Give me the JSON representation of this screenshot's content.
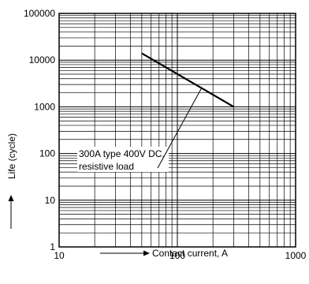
{
  "chart_data": {
    "type": "line",
    "xscale": "log",
    "yscale": "log",
    "xlim": [
      10,
      1000
    ],
    "ylim": [
      1,
      100000
    ],
    "grid": true,
    "xlabel": "Contact current, A",
    "ylabel": "Life (cycle)",
    "x_ticks": [
      "10",
      "100",
      "1000"
    ],
    "y_ticks": [
      "1",
      "10",
      "100",
      "1000",
      "10000",
      "100000"
    ],
    "series": [
      {
        "x": [
          50,
          300
        ],
        "y": [
          14000,
          1000
        ]
      }
    ],
    "annotation": {
      "lines": [
        "300A type 400V DC,",
        "resistive load"
      ],
      "points_to": {
        "x": 160,
        "y": 2500
      }
    }
  }
}
